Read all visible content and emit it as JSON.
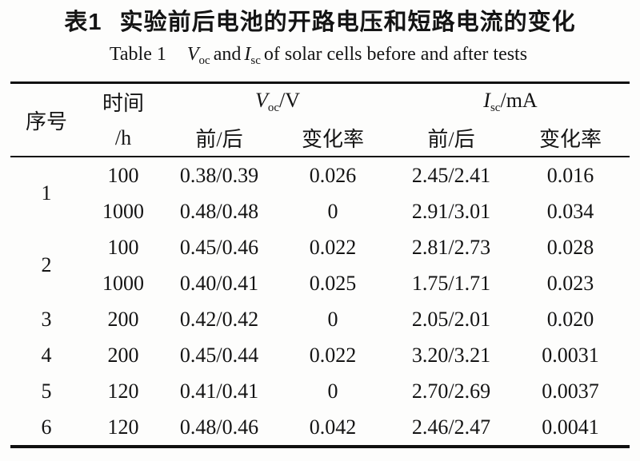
{
  "title": {
    "label": "表1",
    "text": "实验前后电池的开路电压和短路电流的变化"
  },
  "subtitle": {
    "prefix": "Table 1",
    "v_symbol": "V",
    "v_sub": "oc",
    "mid": "and",
    "i_symbol": "I",
    "i_sub": "sc",
    "suffix": "of solar cells before and after tests"
  },
  "table": {
    "headers": {
      "serial": "序号",
      "time_top": "时间",
      "time_bottom": "/h",
      "voc": {
        "symbol": "V",
        "sub": "oc",
        "unit": "/V"
      },
      "isc": {
        "symbol": "I",
        "sub": "sc",
        "unit": "/mA"
      },
      "before_after": "前/后",
      "change_rate": "变化率"
    },
    "rows": [
      {
        "serial": "1",
        "time": "100",
        "voc": "0.38/0.39",
        "voc_rate": "0.026",
        "isc": "2.45/2.41",
        "isc_rate": "0.016"
      },
      {
        "time": "1000",
        "voc": "0.48/0.48",
        "voc_rate": "0",
        "isc": "2.91/3.01",
        "isc_rate": "0.034"
      },
      {
        "serial": "2",
        "time": "100",
        "voc": "0.45/0.46",
        "voc_rate": "0.022",
        "isc": "2.81/2.73",
        "isc_rate": "0.028"
      },
      {
        "time": "1000",
        "voc": "0.40/0.41",
        "voc_rate": "0.025",
        "isc": "1.75/1.71",
        "isc_rate": "0.023"
      },
      {
        "serial": "3",
        "time": "200",
        "voc": "0.42/0.42",
        "voc_rate": "0",
        "isc": "2.05/2.01",
        "isc_rate": "0.020"
      },
      {
        "serial": "4",
        "time": "200",
        "voc": "0.45/0.44",
        "voc_rate": "0.022",
        "isc": "3.20/3.21",
        "isc_rate": "0.0031"
      },
      {
        "serial": "5",
        "time": "120",
        "voc": "0.41/0.41",
        "voc_rate": "0",
        "isc": "2.70/2.69",
        "isc_rate": "0.0037"
      },
      {
        "serial": "6",
        "time": "120",
        "voc": "0.48/0.46",
        "voc_rate": "0.042",
        "isc": "2.46/2.47",
        "isc_rate": "0.0041"
      }
    ]
  }
}
